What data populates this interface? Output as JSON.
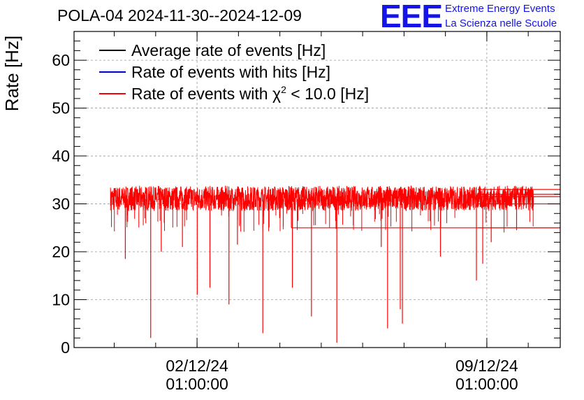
{
  "chart_data": {
    "type": "line",
    "title": "POLA-04 2024-11-30--2024-12-09",
    "ylabel": "Rate [Hz]",
    "xlabel": "",
    "ylim": [
      0,
      66
    ],
    "yticks": [
      0,
      10,
      20,
      30,
      40,
      50,
      60
    ],
    "ytick_labels": [
      "0",
      "10",
      "20",
      "30",
      "40",
      "50",
      "60"
    ],
    "xticks": [
      {
        "position_fraction": 0.253,
        "date": "02/12/24",
        "time": "01:00:00"
      },
      {
        "position_fraction": 0.849,
        "date": "09/12/24",
        "time": "01:00:00"
      }
    ],
    "grid": true,
    "legend_position": "top-left",
    "series": [
      {
        "name": "Average rate of events [Hz]",
        "color": "#000000",
        "typical_value": 32
      },
      {
        "name": "Rate of events with hits [Hz]",
        "color": "#0000cc",
        "typical_value": 32
      },
      {
        "name": "Rate of events with χ² < 10.0 [Hz]",
        "legend_prefix": "Rate of events with ",
        "legend_chi": "χ",
        "legend_sup": "2",
        "legend_suffix": " < 10.0 [Hz]",
        "color": "#ff0000",
        "typical_value": 32
      }
    ],
    "band": {
      "min": 28.5,
      "max": 33.8
    },
    "dips": [
      {
        "t": 0.095,
        "value": 2.0
      },
      {
        "t": 0.205,
        "value": 11.0
      },
      {
        "t": 0.235,
        "value": 12.5
      },
      {
        "t": 0.28,
        "value": 9.0
      },
      {
        "t": 0.36,
        "value": 3.0
      },
      {
        "t": 0.43,
        "value": 12.5
      },
      {
        "t": 0.475,
        "value": 6.5
      },
      {
        "t": 0.535,
        "value": 1.0
      },
      {
        "t": 0.655,
        "value": 4.0
      },
      {
        "t": 0.685,
        "value": 8.0
      },
      {
        "t": 0.69,
        "value": 5.0
      },
      {
        "t": 0.865,
        "value": 14.0
      },
      {
        "t": 0.88,
        "value": 17.5
      },
      {
        "t": 0.17,
        "value": 21.0
      },
      {
        "t": 0.12,
        "value": 20.0
      },
      {
        "t": 0.035,
        "value": 18.5
      },
      {
        "t": 0.3,
        "value": 21.5
      },
      {
        "t": 0.64,
        "value": 21.0
      },
      {
        "t": 0.78,
        "value": 19.0
      },
      {
        "t": 0.9,
        "value": 22.0
      },
      {
        "t": 0.96,
        "value": 24.5
      }
    ],
    "tail_levels": [
      33.0,
      32.0,
      31.5,
      30.0,
      25.0
    ],
    "step_level": 25.0,
    "data_start_fraction": 0.075,
    "data_end_fraction": 0.945
  },
  "logo": {
    "mark": "EEE",
    "line1": "Extreme Energy Events",
    "line2": "La Scienza nelle Scuole",
    "color": "#1414e6"
  }
}
